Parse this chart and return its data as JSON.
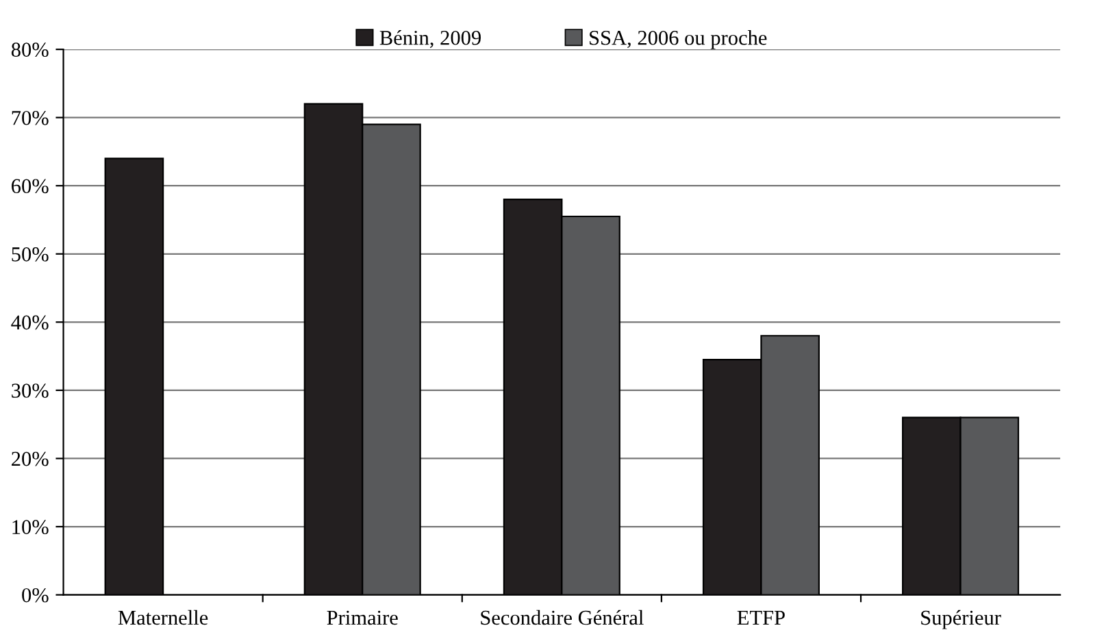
{
  "chart_data": {
    "type": "bar",
    "categories": [
      "Maternelle",
      "Primaire",
      "Secondaire Général",
      "ETFP",
      "Supérieur"
    ],
    "series": [
      {
        "name": "Bénin, 2009",
        "color": "#231f20",
        "values": [
          64,
          72,
          58,
          34.5,
          26
        ]
      },
      {
        "name": "SSA, 2006 ou proche",
        "color": "#58595b",
        "values": [
          null,
          69,
          55.5,
          38,
          26
        ]
      }
    ],
    "ylim": [
      0,
      80
    ],
    "yticks": [
      {
        "value": 0,
        "label": "0%"
      },
      {
        "value": 10,
        "label": "10%"
      },
      {
        "value": 20,
        "label": "20%"
      },
      {
        "value": 30,
        "label": "30%"
      },
      {
        "value": 40,
        "label": "40%"
      },
      {
        "value": 50,
        "label": "50%"
      },
      {
        "value": 60,
        "label": "60%"
      },
      {
        "value": 70,
        "label": "70%"
      },
      {
        "value": 80,
        "label": "80%"
      }
    ],
    "grid": "y",
    "legend": "top"
  }
}
